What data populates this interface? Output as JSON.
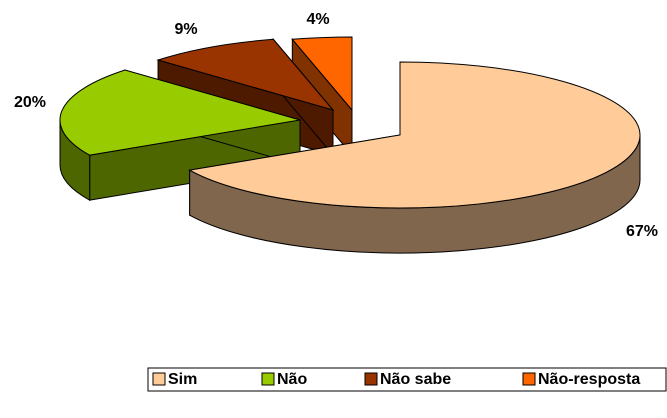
{
  "chart_data": {
    "type": "pie3d",
    "categories": [
      "Sim",
      "Não",
      "Não sabe",
      "Não-resposta"
    ],
    "values": [
      67,
      20,
      9,
      4
    ],
    "value_labels": [
      "67%",
      "20%",
      "9%",
      "4%"
    ],
    "colors": [
      "#FFCC99",
      "#99CC00",
      "#993300",
      "#FF6600"
    ],
    "legend": "bottom"
  }
}
